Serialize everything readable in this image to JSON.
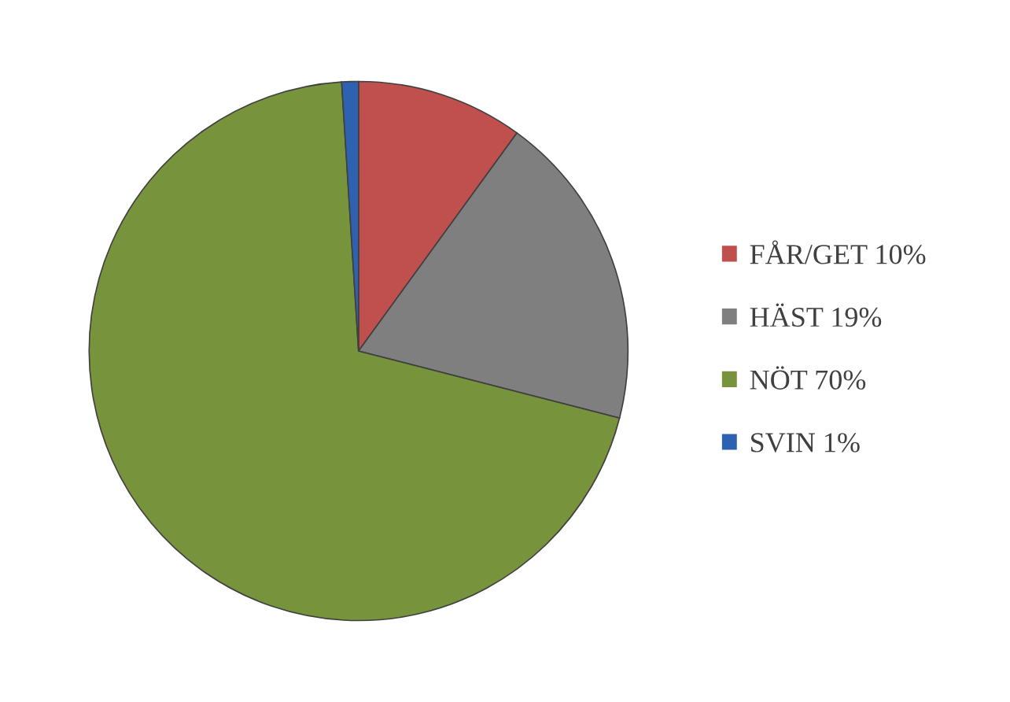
{
  "chart_data": {
    "type": "pie",
    "categories": [
      "FÅR/GET 10%",
      "HÄST 19%",
      "NÖT 70%",
      "SVIN 1%"
    ],
    "values": [
      10,
      19,
      70,
      1
    ],
    "colors": [
      "#c0504d",
      "#7f7f7f",
      "#77933c",
      "#2e62b0"
    ],
    "legend": "right"
  }
}
